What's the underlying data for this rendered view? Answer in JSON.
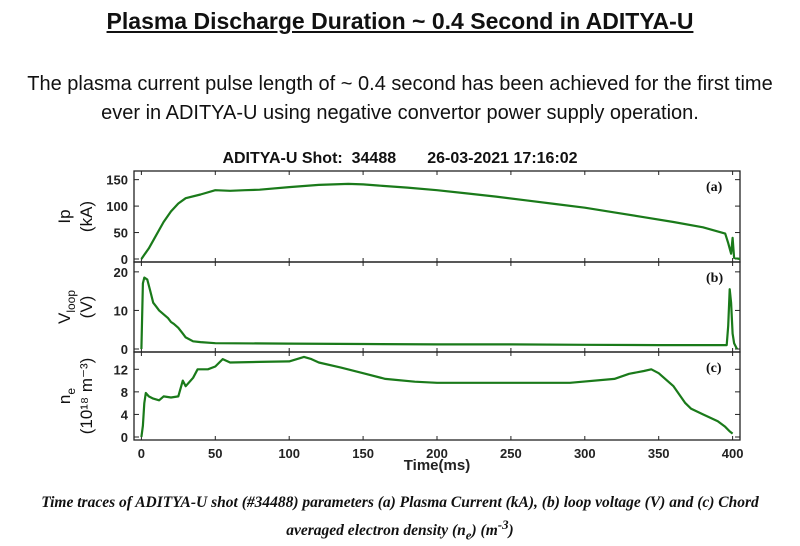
{
  "page": {
    "title": "Plasma Discharge Duration ~ 0.4 Second in ADITYA-U",
    "description": "The plasma current pulse length of ~ 0.4 second has been achieved for the first time ever in ADITYA-U using negative convertor power supply operation.",
    "caption_line1": "Time traces of ADITYA-U shot (#34488) parameters (a) Plasma Current (kA), (b) loop voltage (V) and (c) Chord",
    "caption_line2_prefix": "averaged electron density (n",
    "caption_line2_sub": "e",
    "caption_line2_mid": ") (m",
    "caption_line2_sup": "-3",
    "caption_line2_suffix": ")"
  },
  "chart_data": {
    "type": "line",
    "title": "ADITYA-U Shot:  34488       26-03-2021 17:16:02",
    "xlabel": "Time(ms)",
    "xlim": [
      -5,
      405
    ],
    "xticks": [
      0,
      50,
      100,
      150,
      200,
      250,
      300,
      350,
      400
    ],
    "color": "#1a7a1a",
    "panels": [
      {
        "tag": "(a)",
        "ylabel_main": "Ip",
        "ylabel_unit": "(kA)",
        "ylim": [
          0,
          155
        ],
        "yticks": [
          0,
          50,
          100,
          150
        ],
        "series": {
          "name": "Ip",
          "x": [
            0,
            2,
            5,
            10,
            15,
            20,
            25,
            30,
            40,
            50,
            60,
            70,
            80,
            100,
            120,
            140,
            150,
            160,
            180,
            200,
            220,
            240,
            260,
            280,
            300,
            320,
            340,
            360,
            380,
            395,
            397,
            399,
            400,
            401,
            405
          ],
          "y": [
            0,
            8,
            20,
            45,
            70,
            90,
            105,
            115,
            122,
            130,
            129,
            130,
            131,
            136,
            140,
            142,
            141,
            139,
            135,
            130,
            124,
            118,
            111,
            104,
            97,
            88,
            79,
            70,
            60,
            48,
            30,
            10,
            40,
            2,
            0
          ]
        }
      },
      {
        "tag": "(b)",
        "ylabel_main": "V",
        "ylabel_sub": "loop",
        "ylabel_unit": "(V)",
        "ylim": [
          0,
          21
        ],
        "yticks": [
          0,
          10,
          20
        ],
        "series": {
          "name": "Vloop",
          "x": [
            0,
            1,
            2,
            4,
            6,
            8,
            10,
            12,
            15,
            18,
            20,
            22,
            25,
            28,
            30,
            35,
            40,
            50,
            100,
            150,
            200,
            250,
            300,
            350,
            390,
            396,
            397,
            398,
            399,
            400,
            401,
            403
          ],
          "y": [
            0,
            17,
            18.5,
            18,
            15,
            12,
            11,
            10,
            9,
            8,
            7,
            6.5,
            5.5,
            4,
            3,
            2,
            1.8,
            1.5,
            1.4,
            1.3,
            1.2,
            1.2,
            1.1,
            1.0,
            1.0,
            1.0,
            6,
            15.5,
            12,
            4,
            1.5,
            0
          ]
        }
      },
      {
        "tag": "(c)",
        "ylabel_main": "n",
        "ylabel_sub": "e",
        "ylabel_unit": "(10¹⁸ m⁻³)",
        "ylim": [
          0,
          14
        ],
        "yticks": [
          0,
          4,
          8,
          12
        ],
        "series": {
          "name": "ne",
          "x": [
            0,
            1,
            2,
            3,
            5,
            8,
            12,
            15,
            20,
            25,
            28,
            30,
            35,
            38,
            45,
            50,
            55,
            60,
            80,
            100,
            110,
            115,
            120,
            135,
            150,
            165,
            185,
            200,
            230,
            260,
            290,
            320,
            330,
            340,
            345,
            350,
            360,
            368,
            372,
            380,
            390,
            395,
            398,
            400
          ],
          "y": [
            0,
            2,
            6,
            7.8,
            7.2,
            6.8,
            6.5,
            7.2,
            7.0,
            7.2,
            10,
            9,
            10.5,
            12,
            12,
            12.5,
            13.8,
            13.2,
            13.3,
            13.4,
            14.2,
            13.8,
            13.2,
            12.3,
            11.3,
            10.3,
            9.8,
            9.6,
            9.6,
            9.6,
            9.6,
            10.3,
            11.2,
            11.7,
            12.0,
            11.3,
            9.0,
            6.0,
            5.0,
            4.0,
            2.8,
            1.8,
            1.0,
            0.6
          ]
        }
      }
    ]
  }
}
